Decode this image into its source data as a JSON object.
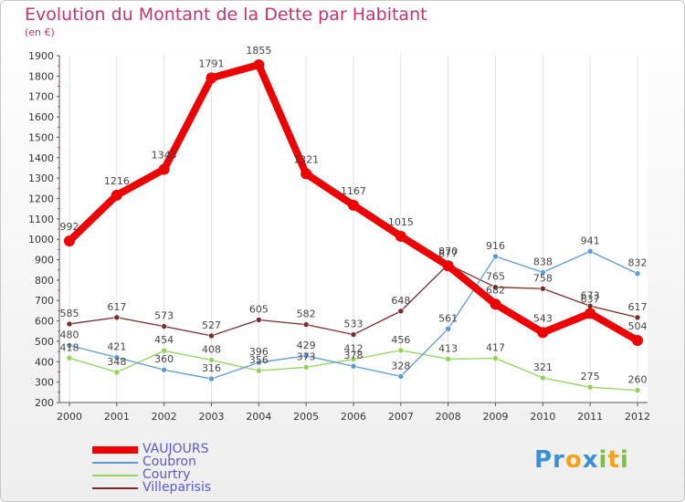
{
  "chart_data": {
    "type": "line",
    "title": "Evolution du Montant de la Dette par Habitant",
    "subtitle": "(en €)",
    "x": [
      "2000",
      "2001",
      "2002",
      "2003",
      "2004",
      "2005",
      "2006",
      "2007",
      "2008",
      "2009",
      "2010",
      "2011",
      "2012"
    ],
    "ylim": [
      200,
      1900
    ],
    "yticks": [
      200,
      300,
      400,
      500,
      600,
      700,
      800,
      900,
      1000,
      1100,
      1200,
      1300,
      1400,
      1500,
      1600,
      1700,
      1800,
      1900
    ],
    "grid": "vertical",
    "legend_position": "bottom-left",
    "series": [
      {
        "name": "VAUJOURS",
        "color": "#ee0000",
        "width": 8,
        "marker": 6,
        "values": [
          992,
          1216,
          1343,
          1791,
          1855,
          1321,
          1167,
          1015,
          870,
          682,
          543,
          637,
          504
        ],
        "labels": [
          "992",
          "1216",
          "1343",
          "1791",
          "1855",
          "1321",
          "1167",
          "1015",
          "870",
          "682",
          "543",
          "637",
          "504"
        ]
      },
      {
        "name": "Coubron",
        "color": "#5b9bd5",
        "width": 1.3,
        "marker": 3,
        "values": [
          480,
          421,
          360,
          316,
          396,
          429,
          378,
          328,
          561,
          916,
          838,
          941,
          832
        ],
        "labels": [
          "480",
          "421",
          "360",
          "316",
          "396",
          "429",
          "378",
          "328",
          "561",
          "916",
          "838",
          "941",
          "832"
        ]
      },
      {
        "name": "Courtry",
        "color": "#8fd45a",
        "width": 1.3,
        "marker": 3,
        "values": [
          418,
          348,
          454,
          408,
          356,
          373,
          412,
          456,
          413,
          417,
          321,
          275,
          260
        ],
        "labels": [
          "418",
          "348",
          "454",
          "408",
          "356",
          "373",
          "412",
          "456",
          "413",
          "417",
          "321",
          "275",
          "260"
        ]
      },
      {
        "name": "Villeparisis",
        "color": "#7a2a2a",
        "width": 1.3,
        "marker": 3,
        "values": [
          585,
          617,
          573,
          527,
          605,
          582,
          533,
          648,
          877,
          765,
          758,
          673,
          617
        ],
        "labels": [
          "585",
          "617",
          "573",
          "527",
          "605",
          "582",
          "533",
          "648",
          "877",
          "765",
          "758",
          "673",
          "617"
        ]
      }
    ]
  },
  "logo": {
    "p1": "Pr",
    "p2": "o",
    "p3": "x",
    "p4": "i",
    "p5": "t",
    "p6": "i"
  }
}
